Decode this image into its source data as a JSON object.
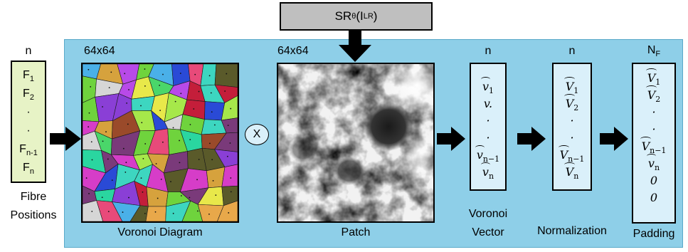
{
  "sr_box": {
    "text": "SR",
    "sub": "θ",
    "arg": "(I",
    "sup": "LR",
    "close": ")"
  },
  "fibre": {
    "count_label": "n",
    "entries": [
      {
        "main": "F",
        "sub": "1"
      },
      {
        "main": "F",
        "sub": "2"
      },
      {
        "main": "·",
        "sub": ""
      },
      {
        "main": "·",
        "sub": ""
      },
      {
        "main": "F",
        "sub": "n-1"
      },
      {
        "main": "F",
        "sub": "n"
      }
    ],
    "caption_line1": "Fibre",
    "caption_line2": "Positions"
  },
  "voronoi": {
    "size_label": "64x64",
    "caption": "Voronoi Diagram"
  },
  "multiply": {
    "symbol": "X"
  },
  "patch": {
    "size_label": "64x64",
    "caption": "Patch"
  },
  "voronoi_vector": {
    "count_label": "n",
    "entries": [
      {
        "main": "v",
        "sub": "1"
      },
      {
        "main": "v.",
        "sub": ""
      },
      {
        "main": "·",
        "sub": ""
      },
      {
        "main": "·",
        "sub": ""
      },
      {
        "main": "v",
        "sub": "n−1"
      },
      {
        "main": "v",
        "sub": "n"
      }
    ],
    "caption_line1": "Voronoi",
    "caption_line2": "Vector"
  },
  "normalization": {
    "count_label": "n",
    "entries": [
      {
        "main": "V",
        "sub": "1"
      },
      {
        "main": "V",
        "sub": "2"
      },
      {
        "main": "·",
        "sub": ""
      },
      {
        "main": "·",
        "sub": ""
      },
      {
        "main": "V",
        "sub": "n−1"
      },
      {
        "main": "V",
        "sub": "n"
      }
    ],
    "caption": "Normalization"
  },
  "padding": {
    "count_label": "N",
    "count_sub": "F",
    "entries": [
      {
        "main": "V",
        "sub": "1"
      },
      {
        "main": "V",
        "sub": "2"
      },
      {
        "main": "·",
        "sub": ""
      },
      {
        "main": "·",
        "sub": ""
      },
      {
        "main": "V",
        "sub": "n−1"
      },
      {
        "main": "v",
        "sub": "n"
      },
      {
        "main": "0",
        "sub": ""
      },
      {
        "main": "0",
        "sub": ""
      }
    ],
    "caption": "Padding"
  },
  "colors": {
    "panel": "#8ecfe8",
    "fibre_box": "#e7f3c6",
    "vector_box": "#daf0fa",
    "sr_box": "#bfbfbf"
  }
}
